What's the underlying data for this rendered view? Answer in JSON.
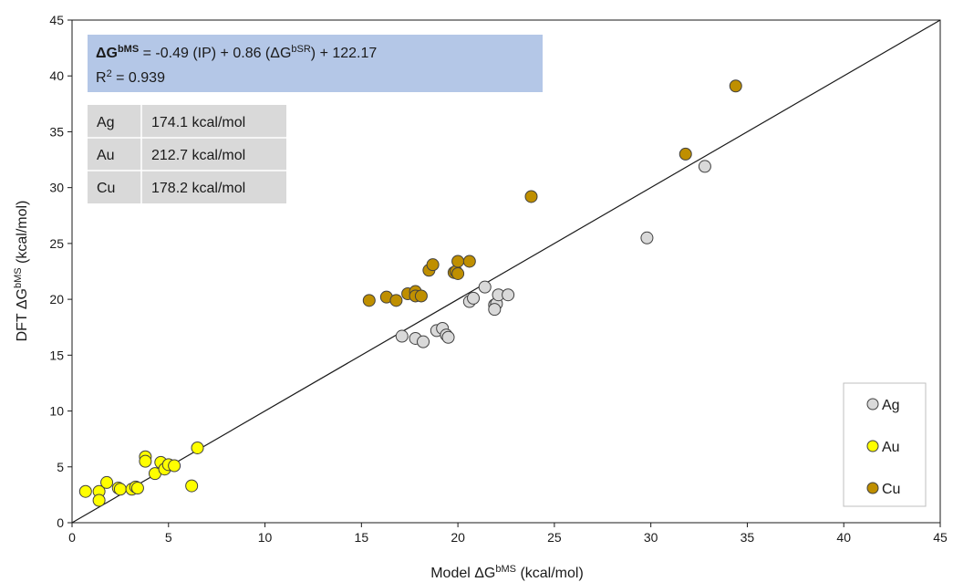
{
  "chart_data": {
    "type": "scatter",
    "xlabel": "Model ΔGbMS (kcal/mol)",
    "xlabel_parts": {
      "pre": "Model ΔG",
      "sup": "bMS",
      "post": " (kcal/mol)"
    },
    "ylabel": "DFT ΔGbMS (kcal/mol)",
    "ylabel_parts": {
      "pre": "DFT ΔG",
      "sup": "bMS",
      "post": " (kcal/mol)"
    },
    "xlim": [
      0,
      45
    ],
    "ylim": [
      0,
      45
    ],
    "xticks": [
      0,
      5,
      10,
      15,
      20,
      25,
      30,
      35,
      40,
      45
    ],
    "yticks": [
      0,
      5,
      10,
      15,
      20,
      25,
      30,
      35,
      40,
      45
    ],
    "grid": false,
    "legend_position": "bottom-right",
    "reference_line": {
      "from": [
        0,
        0
      ],
      "to": [
        45,
        45
      ],
      "color": "#1a1a1a"
    },
    "annotation": {
      "equation": {
        "bold": "ΔG",
        "bold_sup": "bMS",
        "mid": " = -0.49 (IP) + 0.86 (ΔG",
        "mid_sup": "bSR",
        "end": ") + 122.17"
      },
      "r2": {
        "pre": "R",
        "sup": "2",
        "post": " = 0.939"
      },
      "background": "#b4c7e7"
    },
    "table": {
      "background": "#d9d9d9",
      "rows": [
        {
          "metal": "Ag",
          "value": "174.1 kcal/mol"
        },
        {
          "metal": "Au",
          "value": "212.7 kcal/mol"
        },
        {
          "metal": "Cu",
          "value": "178.2 kcal/mol"
        }
      ]
    },
    "series": [
      {
        "name": "Ag",
        "color": "#d9d9d9",
        "points": [
          [
            17.1,
            16.7
          ],
          [
            17.8,
            16.5
          ],
          [
            18.2,
            16.2
          ],
          [
            18.9,
            17.2
          ],
          [
            19.2,
            17.4
          ],
          [
            19.4,
            16.8
          ],
          [
            19.5,
            16.6
          ],
          [
            20.6,
            19.8
          ],
          [
            20.8,
            20.1
          ],
          [
            21.4,
            21.1
          ],
          [
            21.9,
            19.5
          ],
          [
            22.0,
            19.6
          ],
          [
            21.9,
            19.1
          ],
          [
            22.1,
            20.4
          ],
          [
            22.6,
            20.4
          ],
          [
            29.8,
            25.5
          ],
          [
            32.8,
            31.9
          ]
        ]
      },
      {
        "name": "Au",
        "color": "#ffff00",
        "points": [
          [
            0.7,
            2.8
          ],
          [
            1.4,
            2.8
          ],
          [
            1.4,
            2.0
          ],
          [
            1.8,
            3.6
          ],
          [
            2.4,
            3.1
          ],
          [
            2.5,
            3.0
          ],
          [
            3.1,
            3.0
          ],
          [
            3.3,
            3.2
          ],
          [
            3.4,
            3.1
          ],
          [
            3.8,
            5.9
          ],
          [
            3.8,
            5.5
          ],
          [
            4.3,
            4.4
          ],
          [
            4.6,
            5.4
          ],
          [
            4.8,
            4.8
          ],
          [
            5.0,
            5.2
          ],
          [
            5.3,
            5.1
          ],
          [
            6.2,
            3.3
          ],
          [
            6.5,
            6.7
          ]
        ]
      },
      {
        "name": "Cu",
        "color": "#bf8f00",
        "points": [
          [
            15.4,
            19.9
          ],
          [
            16.3,
            20.2
          ],
          [
            16.8,
            19.9
          ],
          [
            17.4,
            20.5
          ],
          [
            17.8,
            20.7
          ],
          [
            17.8,
            20.3
          ],
          [
            18.1,
            20.3
          ],
          [
            18.5,
            22.6
          ],
          [
            18.7,
            23.1
          ],
          [
            19.8,
            22.4
          ],
          [
            19.9,
            22.5
          ],
          [
            20.0,
            22.3
          ],
          [
            20.0,
            23.4
          ],
          [
            20.6,
            23.4
          ],
          [
            23.8,
            29.2
          ],
          [
            31.8,
            33.0
          ],
          [
            34.4,
            39.1
          ]
        ]
      }
    ]
  }
}
